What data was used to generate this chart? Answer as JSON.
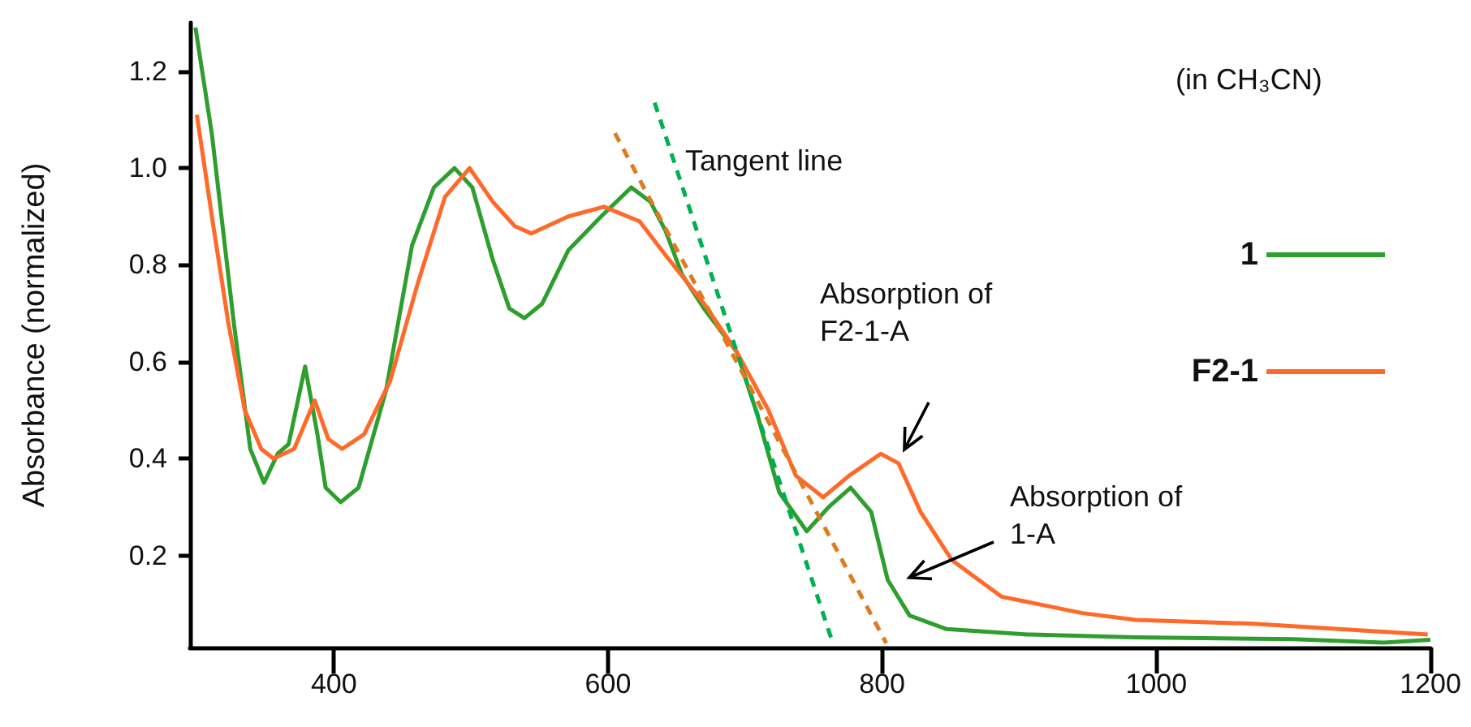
{
  "chart_data": {
    "type": "line",
    "ylabel": "Absorbance (normalized)",
    "xlim": [
      295,
      1200
    ],
    "xticks": [
      400,
      600,
      800,
      1000,
      1200
    ],
    "ylim": [
      0.01,
      1.3
    ],
    "yticks": [
      0.2,
      0.4,
      0.6,
      0.8,
      {
        "value": 1,
        "label": "1.0"
      },
      1.2
    ],
    "grid": false,
    "legend": "right",
    "marker": "none",
    "line_style": "solid",
    "annotations": [
      "(in CH₃CN)",
      "Tangent line",
      "Absorption of\nF2-1-A",
      "Absorption of\n1-A"
    ],
    "series": [
      {
        "name": "1",
        "color": "#2e9e2e",
        "x": [
          299,
          311,
          327,
          339,
          349,
          359,
          367,
          379,
          388,
          394,
          405,
          418,
          438,
          457,
          473,
          488,
          501,
          516,
          528,
          539,
          552,
          571,
          595,
          617,
          631,
          642,
          654,
          670,
          694,
          709,
          725,
          745,
          761,
          777,
          792,
          804,
          820,
          847,
          906,
          985,
          1100,
          1166,
          1200
        ],
        "values": [
          1.29,
          1.07,
          0.68,
          0.42,
          0.35,
          0.41,
          0.43,
          0.59,
          0.45,
          0.34,
          0.31,
          0.34,
          0.54,
          0.84,
          0.96,
          1.0,
          0.96,
          0.81,
          0.71,
          0.69,
          0.72,
          0.83,
          0.9,
          0.96,
          0.93,
          0.87,
          0.78,
          0.71,
          0.62,
          0.49,
          0.33,
          0.25,
          0.3,
          0.34,
          0.29,
          0.15,
          0.076,
          0.048,
          0.037,
          0.031,
          0.027,
          0.02,
          0.026
        ]
      },
      {
        "name": "F2-1",
        "color": "#ff6a2a",
        "x": [
          300,
          311,
          323,
          335,
          347,
          356,
          371,
          386,
          396,
          406,
          422,
          441,
          461,
          481,
          499,
          516,
          532,
          544,
          571,
          597,
          623,
          642,
          670,
          694,
          717,
          737,
          757,
          776,
          799,
          812,
          828,
          851,
          887,
          946,
          985,
          1071,
          1198
        ],
        "values": [
          1.11,
          0.9,
          0.68,
          0.5,
          0.42,
          0.4,
          0.42,
          0.52,
          0.44,
          0.42,
          0.45,
          0.56,
          0.76,
          0.94,
          1.0,
          0.93,
          0.88,
          0.865,
          0.9,
          0.92,
          0.89,
          0.82,
          0.72,
          0.62,
          0.5,
          0.365,
          0.32,
          0.365,
          0.41,
          0.39,
          0.29,
          0.19,
          0.115,
          0.081,
          0.067,
          0.059,
          0.037
        ]
      },
      {
        "color": "#00b050",
        "line_style": "dashed",
        "x": [
          634,
          764
        ],
        "values": [
          1.135,
          0.019
        ]
      },
      {
        "color": "#e07a1f",
        "line_style": "dashed",
        "x": [
          605,
          803
        ],
        "values": [
          1.072,
          0.019
        ]
      }
    ]
  }
}
